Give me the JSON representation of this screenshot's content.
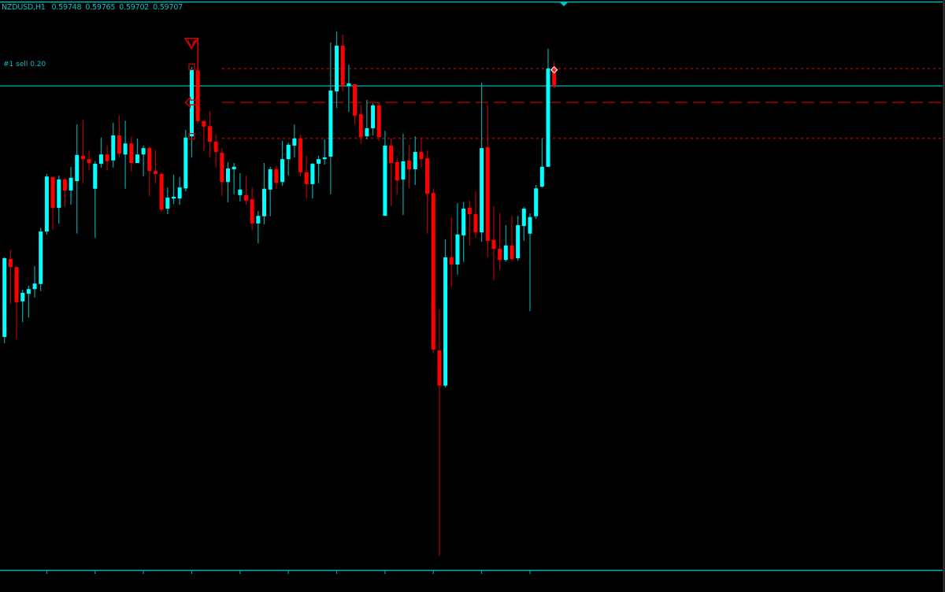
{
  "header": {
    "symbol_timeframe": "NZDUSD,H1",
    "open": "0.59748",
    "high": "0.59765",
    "low": "0.59702",
    "close": "0.59707"
  },
  "order_label": "#1 sell 0.20",
  "colors": {
    "background": "#000000",
    "bull_body": "#00ffff",
    "bull_wick": "#00a8a8",
    "bear_body": "#ff0000",
    "bear_wick": "#b80000",
    "bid_line": "#00b4b4",
    "axis": "#00b4b4",
    "order_levels": "#c00000"
  },
  "chart_data": {
    "type": "candlestick",
    "symbol": "NZDUSD",
    "timeframe": "H1",
    "bid": 0.59707,
    "levels": [
      {
        "price": 0.59748,
        "style": "dotted"
      },
      {
        "price": 0.59668,
        "style": "dashed"
      },
      {
        "price": 0.59583,
        "style": "dotted"
      }
    ],
    "markers": [
      {
        "candle": 32,
        "price": 0.5981,
        "icon": "sell-arrow-icon"
      },
      {
        "candle": 31,
        "price": 0.59752,
        "icon": "square-marker-icon"
      },
      {
        "candle": 31,
        "price": 0.59588,
        "icon": "square-marker-icon"
      },
      {
        "candle": 31,
        "price": 0.59668,
        "icon": "sell-entry-arrow-icon"
      },
      {
        "candle": 91,
        "price": 0.59745,
        "icon": "diamond-marker-icon"
      }
    ],
    "candles": [
      [
        0.59114,
        0.59302,
        0.59099,
        0.593
      ],
      [
        0.59298,
        0.5932,
        0.59192,
        0.59279
      ],
      [
        0.59279,
        0.59281,
        0.59108,
        0.59196
      ],
      [
        0.59198,
        0.59226,
        0.59149,
        0.59218
      ],
      [
        0.59216,
        0.59235,
        0.5916,
        0.59227
      ],
      [
        0.59227,
        0.59281,
        0.59207,
        0.5924
      ],
      [
        0.59239,
        0.59372,
        0.59222,
        0.59363
      ],
      [
        0.59363,
        0.59499,
        0.59356,
        0.59493
      ],
      [
        0.59492,
        0.59492,
        0.59367,
        0.59419
      ],
      [
        0.59419,
        0.59495,
        0.59382,
        0.59486
      ],
      [
        0.59486,
        0.5949,
        0.59421,
        0.5946
      ],
      [
        0.5946,
        0.59516,
        0.59426,
        0.5949
      ],
      [
        0.59482,
        0.59616,
        0.59358,
        0.59544
      ],
      [
        0.59542,
        0.59627,
        0.59477,
        0.59534
      ],
      [
        0.59534,
        0.59555,
        0.59508,
        0.59525
      ],
      [
        0.59464,
        0.59529,
        0.59348,
        0.59523
      ],
      [
        0.59523,
        0.59585,
        0.59514,
        0.59545
      ],
      [
        0.59545,
        0.59566,
        0.59508,
        0.59529
      ],
      [
        0.59531,
        0.5962,
        0.59514,
        0.5959
      ],
      [
        0.5959,
        0.59637,
        0.59538,
        0.59547
      ],
      [
        0.59545,
        0.59625,
        0.59464,
        0.59571
      ],
      [
        0.59571,
        0.59588,
        0.59505,
        0.59525
      ],
      [
        0.59525,
        0.59583,
        0.59525,
        0.59545
      ],
      [
        0.59545,
        0.59566,
        0.59493,
        0.5956
      ],
      [
        0.5956,
        0.59564,
        0.59447,
        0.59506
      ],
      [
        0.59506,
        0.59555,
        0.59477,
        0.59499
      ],
      [
        0.59499,
        0.59503,
        0.5941,
        0.59415
      ],
      [
        0.59417,
        0.59467,
        0.59404,
        0.59443
      ],
      [
        0.59441,
        0.59497,
        0.59428,
        0.59445
      ],
      [
        0.59441,
        0.59492,
        0.59426,
        0.59467
      ],
      [
        0.59465,
        0.59603,
        0.59458,
        0.59585
      ],
      [
        0.59588,
        0.59752,
        0.59538,
        0.59746
      ],
      [
        0.59744,
        0.59808,
        0.59618,
        0.59624
      ],
      [
        0.59624,
        0.59625,
        0.59553,
        0.59611
      ],
      [
        0.59612,
        0.59648,
        0.59538,
        0.59575
      ],
      [
        0.59575,
        0.59592,
        0.59514,
        0.59551
      ],
      [
        0.59549,
        0.5956,
        0.59447,
        0.5948
      ],
      [
        0.5948,
        0.59527,
        0.59432,
        0.59512
      ],
      [
        0.5951,
        0.59525,
        0.59451,
        0.59516
      ],
      [
        0.59449,
        0.59501,
        0.59434,
        0.59462
      ],
      [
        0.59449,
        0.59495,
        0.59426,
        0.59436
      ],
      [
        0.59439,
        0.59467,
        0.59367,
        0.59382
      ],
      [
        0.59382,
        0.59412,
        0.59335,
        0.594
      ],
      [
        0.59399,
        0.59525,
        0.5938,
        0.59464
      ],
      [
        0.59462,
        0.59516,
        0.59399,
        0.5951
      ],
      [
        0.5951,
        0.59518,
        0.59464,
        0.59478
      ],
      [
        0.5948,
        0.59577,
        0.59471,
        0.59534
      ],
      [
        0.59534,
        0.59573,
        0.59495,
        0.59568
      ],
      [
        0.59566,
        0.59616,
        0.59538,
        0.59583
      ],
      [
        0.59583,
        0.59592,
        0.59493,
        0.59503
      ],
      [
        0.59503,
        0.59542,
        0.59441,
        0.59475
      ],
      [
        0.59475,
        0.59525,
        0.59441,
        0.59523
      ],
      [
        0.59523,
        0.59542,
        0.59477,
        0.59534
      ],
      [
        0.59534,
        0.59581,
        0.59521,
        0.59538
      ],
      [
        0.5954,
        0.5981,
        0.59451,
        0.59696
      ],
      [
        0.59694,
        0.59836,
        0.59655,
        0.59802
      ],
      [
        0.59802,
        0.59828,
        0.59694,
        0.59707
      ],
      [
        0.59707,
        0.59757,
        0.59646,
        0.59713
      ],
      [
        0.59711,
        0.59711,
        0.59616,
        0.59637
      ],
      [
        0.5964,
        0.59661,
        0.5957,
        0.59586
      ],
      [
        0.59588,
        0.59674,
        0.59581,
        0.59607
      ],
      [
        0.59607,
        0.59666,
        0.5959,
        0.59661
      ],
      [
        0.59661,
        0.59668,
        0.59577,
        0.59586
      ],
      [
        0.594,
        0.59601,
        0.594,
        0.59566
      ],
      [
        0.59566,
        0.59583,
        0.59423,
        0.59525
      ],
      [
        0.59527,
        0.59536,
        0.59451,
        0.59484
      ],
      [
        0.59486,
        0.59594,
        0.59402,
        0.59529
      ],
      [
        0.59531,
        0.59568,
        0.59465,
        0.5951
      ],
      [
        0.5951,
        0.59588,
        0.59473,
        0.59551
      ],
      [
        0.59551,
        0.59586,
        0.59514,
        0.59534
      ],
      [
        0.59536,
        0.59555,
        0.59358,
        0.59452
      ],
      [
        0.59454,
        0.59465,
        0.59075,
        0.59084
      ],
      [
        0.59082,
        0.59179,
        0.58597,
        0.58999
      ],
      [
        0.58999,
        0.59345,
        0.58995,
        0.59302
      ],
      [
        0.59302,
        0.59397,
        0.59233,
        0.59285
      ],
      [
        0.59285,
        0.5943,
        0.59261,
        0.59356
      ],
      [
        0.59354,
        0.59432,
        0.59291,
        0.59417
      ],
      [
        0.59419,
        0.59436,
        0.5933,
        0.59404
      ],
      [
        0.59404,
        0.59458,
        0.59348,
        0.59361
      ],
      [
        0.59361,
        0.59715,
        0.59339,
        0.5956
      ],
      [
        0.59562,
        0.59661,
        0.59302,
        0.59341
      ],
      [
        0.59343,
        0.59423,
        0.59248,
        0.59322
      ],
      [
        0.59322,
        0.59406,
        0.59272,
        0.59296
      ],
      [
        0.59296,
        0.59378,
        0.59292,
        0.5933
      ],
      [
        0.5933,
        0.594,
        0.59294,
        0.59298
      ],
      [
        0.593,
        0.594,
        0.59294,
        0.59378
      ],
      [
        0.59376,
        0.59421,
        0.59341,
        0.59417
      ],
      [
        0.59358,
        0.59406,
        0.59175,
        0.59397
      ],
      [
        0.59399,
        0.59473,
        0.59393,
        0.59465
      ],
      [
        0.59469,
        0.59583,
        0.59467,
        0.59516
      ],
      [
        0.59516,
        0.59795,
        0.59516,
        0.59748
      ],
      [
        0.59748,
        0.59765,
        0.59702,
        0.59707
      ]
    ],
    "candle_format": [
      "open",
      "high",
      "low",
      "close"
    ]
  }
}
